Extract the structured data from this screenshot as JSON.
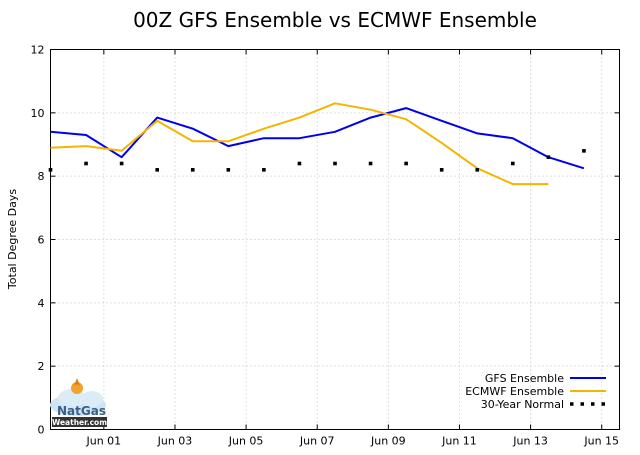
{
  "chart_data": {
    "type": "line",
    "title": "00Z GFS Ensemble vs  ECMWF Ensemble",
    "xlabel": "",
    "ylabel": "Total Degree Days",
    "ylim": [
      0,
      12
    ],
    "yticks": [
      0,
      2,
      4,
      6,
      8,
      10,
      12
    ],
    "xlim": [
      0,
      16
    ],
    "xticks": [
      {
        "x": 1.5,
        "label": "Jun 01"
      },
      {
        "x": 3.5,
        "label": "Jun 03"
      },
      {
        "x": 5.5,
        "label": "Jun 05"
      },
      {
        "x": 7.5,
        "label": "Jun 07"
      },
      {
        "x": 9.5,
        "label": "Jun 09"
      },
      {
        "x": 11.5,
        "label": "Jun 11"
      },
      {
        "x": 13.5,
        "label": "Jun 13"
      },
      {
        "x": 15.5,
        "label": "Jun 15"
      }
    ],
    "grid": true,
    "legend_position": "bottom-right",
    "series": [
      {
        "name": "GFS Ensemble",
        "color": "#0000ee",
        "style": "solid",
        "x": [
          0,
          1,
          2,
          3,
          4,
          5,
          6,
          7,
          8,
          9,
          10,
          11,
          12,
          13,
          14,
          15
        ],
        "values": [
          9.4,
          9.3,
          8.6,
          9.85,
          9.5,
          8.95,
          9.2,
          9.2,
          9.4,
          9.85,
          10.15,
          9.75,
          9.35,
          9.2,
          8.6,
          8.25
        ]
      },
      {
        "name": "ECMWF Ensemble",
        "color": "#f5b400",
        "style": "solid",
        "x": [
          0,
          1,
          2,
          3,
          4,
          5,
          6,
          7,
          8,
          9,
          10,
          11,
          12,
          13,
          14
        ],
        "values": [
          8.9,
          8.95,
          8.8,
          9.75,
          9.1,
          9.1,
          9.5,
          9.85,
          10.3,
          10.1,
          9.8,
          9.05,
          8.25,
          7.75,
          7.75
        ]
      },
      {
        "name": "30-Year Normal",
        "color": "#000000",
        "style": "dotted",
        "x": [
          0,
          1,
          2,
          3,
          4,
          5,
          6,
          7,
          8,
          9,
          10,
          11,
          12,
          13,
          14,
          15
        ],
        "values": [
          8.2,
          8.4,
          8.4,
          8.2,
          8.2,
          8.2,
          8.2,
          8.4,
          8.4,
          8.4,
          8.4,
          8.2,
          8.2,
          8.4,
          8.6,
          8.8
        ]
      }
    ]
  },
  "logo": {
    "brand_top": "NatGas",
    "brand_bottom": "Weather.com"
  }
}
